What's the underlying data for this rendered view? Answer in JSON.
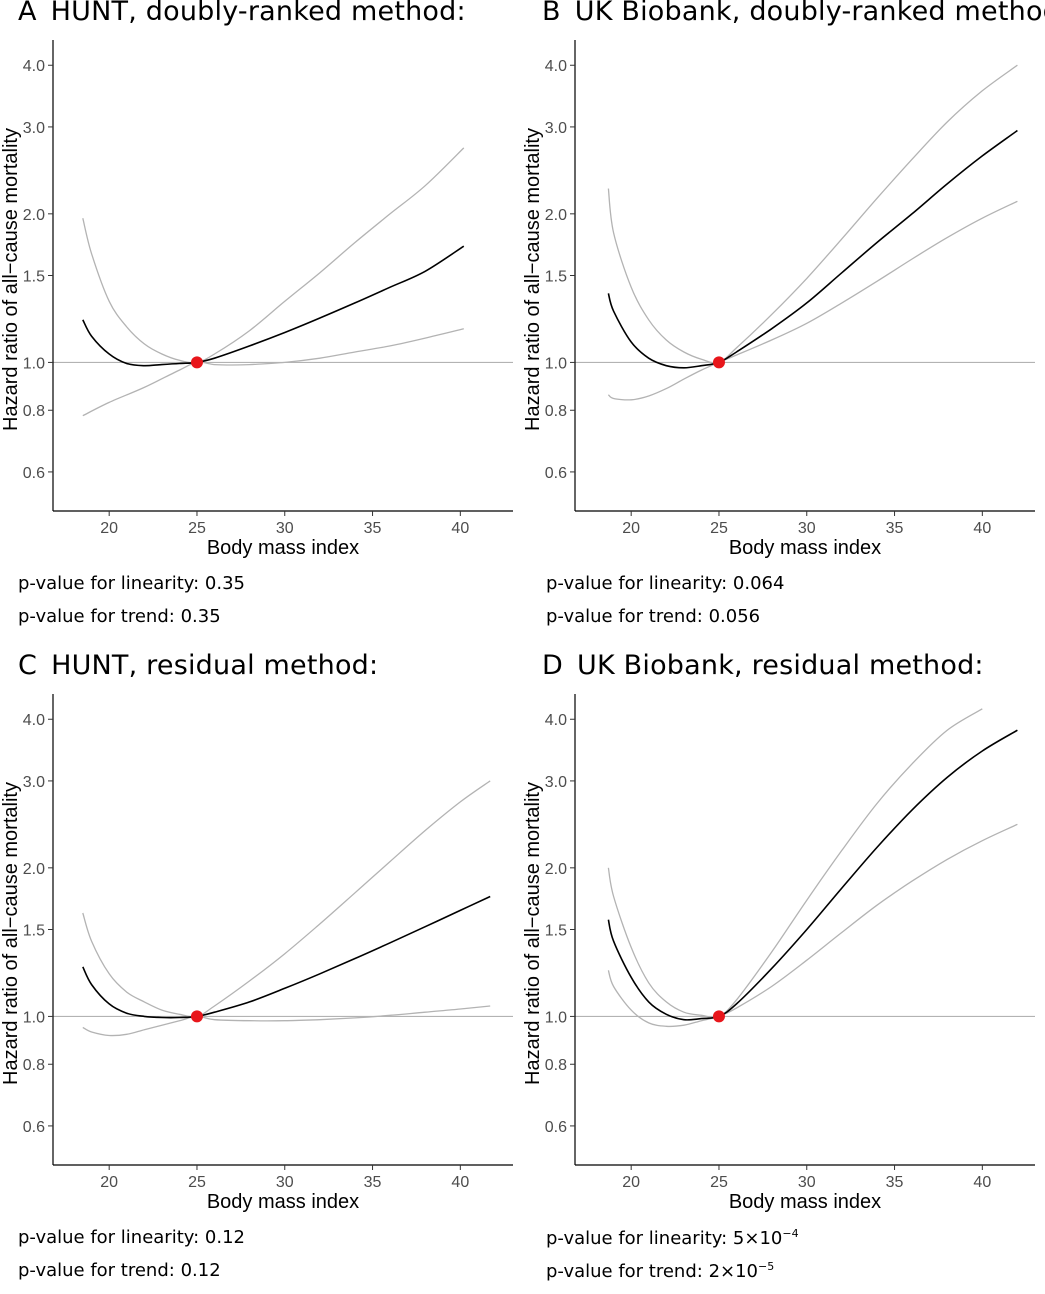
{
  "chart_data": [
    {
      "type": "line",
      "panel_letter": "A",
      "title": "HUNT, doubly-ranked method:",
      "xlabel": "Body mass index",
      "ylabel": "Hazard ratio of all−cause mortality",
      "x_ticks": [
        "20",
        "25",
        "30",
        "35",
        "40"
      ],
      "y_ticks": [
        "0.6",
        "0.8",
        "1.0",
        "1.5",
        "2.0",
        "3.0",
        "4.0"
      ],
      "xlim": [
        16.8,
        43.0
      ],
      "ylim": [
        0.5,
        4.5
      ],
      "y_scale": "log",
      "grid": false,
      "reference_line": 1.0,
      "reference_point": {
        "x": 25,
        "y": 1.0,
        "color": "#e8161b"
      },
      "series": [
        {
          "role": "estimate",
          "color": "#000000",
          "x": [
            18.5,
            19,
            20,
            21,
            22,
            23,
            24,
            25,
            26,
            28,
            30,
            32,
            34,
            36,
            38,
            40.2
          ],
          "values": [
            1.22,
            1.13,
            1.04,
            0.995,
            0.985,
            0.99,
            0.995,
            1.0,
            1.02,
            1.08,
            1.15,
            1.23,
            1.32,
            1.42,
            1.53,
            1.72
          ]
        },
        {
          "role": "ci_upper",
          "color": "#b3b3b3",
          "x": [
            18.5,
            19,
            20,
            21,
            22,
            23,
            24,
            25,
            26,
            28,
            30,
            32,
            34,
            36,
            38,
            40.2
          ],
          "values": [
            1.96,
            1.66,
            1.33,
            1.18,
            1.09,
            1.04,
            1.01,
            1.0,
            1.04,
            1.16,
            1.33,
            1.52,
            1.75,
            2.0,
            2.28,
            2.72
          ]
        },
        {
          "role": "ci_lower",
          "color": "#b3b3b3",
          "x": [
            18.5,
            20,
            22,
            24,
            25,
            26,
            27,
            28,
            30,
            32,
            34,
            36,
            38,
            40.2
          ],
          "values": [
            0.78,
            0.83,
            0.89,
            0.965,
            1.0,
            0.99,
            0.988,
            0.99,
            1.0,
            1.02,
            1.05,
            1.08,
            1.12,
            1.17
          ]
        }
      ],
      "p_values": {
        "linearity_label": "p-value for linearity: ",
        "linearity": "0.35",
        "trend_label": "p-value for trend: ",
        "trend": "0.35"
      }
    },
    {
      "type": "line",
      "panel_letter": "B",
      "title": "UK Biobank, doubly-ranked method:",
      "xlabel": "Body mass index",
      "ylabel": "Hazard ratio of all−cause mortality",
      "x_ticks": [
        "20",
        "25",
        "30",
        "35",
        "40"
      ],
      "y_ticks": [
        "0.6",
        "0.8",
        "1.0",
        "1.5",
        "2.0",
        "3.0",
        "4.0"
      ],
      "xlim": [
        16.8,
        43.0
      ],
      "ylim": [
        0.5,
        4.5
      ],
      "y_scale": "log",
      "grid": false,
      "reference_line": 1.0,
      "reference_point": {
        "x": 25,
        "y": 1.0,
        "color": "#e8161b"
      },
      "series": [
        {
          "role": "estimate",
          "color": "#000000",
          "x": [
            18.7,
            19,
            20,
            21,
            22,
            23,
            24,
            25,
            26,
            28,
            30,
            32,
            34,
            36,
            38,
            40,
            42
          ],
          "values": [
            1.38,
            1.27,
            1.1,
            1.02,
            0.985,
            0.975,
            0.985,
            1.0,
            1.05,
            1.17,
            1.32,
            1.52,
            1.75,
            2.0,
            2.3,
            2.62,
            2.95
          ]
        },
        {
          "role": "ci_upper",
          "color": "#b3b3b3",
          "x": [
            18.7,
            19,
            20,
            21,
            22,
            23,
            24,
            25,
            26,
            28,
            30,
            32,
            34,
            36,
            38,
            40,
            42
          ],
          "values": [
            2.25,
            1.83,
            1.42,
            1.22,
            1.11,
            1.05,
            1.015,
            1.0,
            1.07,
            1.25,
            1.48,
            1.78,
            2.15,
            2.58,
            3.07,
            3.55,
            4.0
          ]
        },
        {
          "role": "ci_lower",
          "color": "#b3b3b3",
          "x": [
            18.7,
            19,
            20,
            21,
            22,
            23,
            24,
            25,
            26,
            28,
            30,
            32,
            34,
            36,
            38,
            40,
            42
          ],
          "values": [
            0.86,
            0.845,
            0.84,
            0.855,
            0.885,
            0.925,
            0.965,
            1.0,
            1.035,
            1.11,
            1.2,
            1.32,
            1.46,
            1.62,
            1.79,
            1.96,
            2.12
          ]
        }
      ],
      "p_values": {
        "linearity_label": "p-value for linearity: ",
        "linearity": "0.064",
        "trend_label": "p-value for trend: ",
        "trend": "0.056"
      }
    },
    {
      "type": "line",
      "panel_letter": "C",
      "title": "HUNT, residual method:",
      "xlabel": "Body mass index",
      "ylabel": "Hazard ratio of all−cause mortality",
      "x_ticks": [
        "20",
        "25",
        "30",
        "35",
        "40"
      ],
      "y_ticks": [
        "0.6",
        "0.8",
        "1.0",
        "1.5",
        "2.0",
        "3.0",
        "4.0"
      ],
      "xlim": [
        16.8,
        43.0
      ],
      "ylim": [
        0.5,
        4.5
      ],
      "y_scale": "log",
      "grid": false,
      "reference_line": 1.0,
      "reference_point": {
        "x": 25,
        "y": 1.0,
        "color": "#e8161b"
      },
      "series": [
        {
          "role": "estimate",
          "color": "#000000",
          "x": [
            18.5,
            19,
            20,
            21,
            22,
            23,
            24,
            25,
            26,
            28,
            30,
            32,
            34,
            36,
            38,
            40,
            41.7
          ],
          "values": [
            1.26,
            1.16,
            1.06,
            1.015,
            1.0,
            0.995,
            0.995,
            1.0,
            1.02,
            1.07,
            1.14,
            1.22,
            1.31,
            1.41,
            1.52,
            1.64,
            1.75
          ]
        },
        {
          "role": "ci_upper",
          "color": "#b3b3b3",
          "x": [
            18.5,
            19,
            20,
            21,
            22,
            23,
            24,
            25,
            26,
            28,
            30,
            32,
            34,
            36,
            38,
            40,
            41.7
          ],
          "values": [
            1.62,
            1.42,
            1.22,
            1.12,
            1.07,
            1.03,
            1.01,
            1.0,
            1.05,
            1.18,
            1.34,
            1.54,
            1.78,
            2.06,
            2.38,
            2.72,
            3.0
          ]
        },
        {
          "role": "ci_lower",
          "color": "#b3b3b3",
          "x": [
            18.5,
            19,
            20,
            21,
            22,
            23,
            24,
            25,
            26,
            28,
            30,
            32,
            34,
            36,
            38,
            40,
            41.7
          ],
          "values": [
            0.95,
            0.93,
            0.915,
            0.92,
            0.94,
            0.96,
            0.98,
            1.0,
            0.985,
            0.98,
            0.98,
            0.985,
            0.993,
            1.005,
            1.02,
            1.035,
            1.05
          ]
        }
      ],
      "p_values": {
        "linearity_label": "p-value for linearity: ",
        "linearity": "0.12",
        "trend_label": "p-value for trend: ",
        "trend": "0.12"
      }
    },
    {
      "type": "line",
      "panel_letter": "D",
      "title": "UK Biobank, residual method:",
      "xlabel": "Body mass index",
      "ylabel": "Hazard ratio of all−cause mortality",
      "x_ticks": [
        "20",
        "25",
        "30",
        "35",
        "40"
      ],
      "y_ticks": [
        "0.6",
        "0.8",
        "1.0",
        "1.5",
        "2.0",
        "3.0",
        "4.0"
      ],
      "xlim": [
        16.8,
        43.0
      ],
      "ylim": [
        0.5,
        4.5
      ],
      "y_scale": "log",
      "grid": false,
      "reference_line": 1.0,
      "reference_point": {
        "x": 25,
        "y": 1.0,
        "color": "#e8161b"
      },
      "series": [
        {
          "role": "estimate",
          "color": "#000000",
          "x": [
            18.7,
            19,
            20,
            21,
            22,
            23,
            24,
            25,
            26,
            28,
            30,
            32,
            34,
            36,
            38,
            40,
            42
          ],
          "values": [
            1.57,
            1.42,
            1.2,
            1.07,
            1.01,
            0.985,
            0.99,
            1.0,
            1.06,
            1.25,
            1.5,
            1.82,
            2.2,
            2.62,
            3.05,
            3.45,
            3.8
          ]
        },
        {
          "role": "ci_upper",
          "color": "#b3b3b3",
          "x": [
            18.7,
            19,
            20,
            21,
            22,
            23,
            24,
            25,
            26,
            28,
            30,
            32,
            34,
            36,
            38,
            40
          ],
          "values": [
            2.0,
            1.75,
            1.38,
            1.17,
            1.07,
            1.02,
            1.005,
            1.0,
            1.08,
            1.35,
            1.72,
            2.17,
            2.7,
            3.25,
            3.8,
            4.2
          ]
        },
        {
          "role": "ci_lower",
          "color": "#b3b3b3",
          "x": [
            18.7,
            19,
            20,
            21,
            22,
            23,
            24,
            25,
            26,
            28,
            30,
            32,
            34,
            36,
            38,
            40,
            42
          ],
          "values": [
            1.24,
            1.15,
            1.03,
            0.97,
            0.955,
            0.96,
            0.98,
            1.0,
            1.04,
            1.15,
            1.3,
            1.48,
            1.68,
            1.88,
            2.08,
            2.27,
            2.45
          ]
        }
      ],
      "p_values": {
        "linearity_label": "p-value for linearity: ",
        "linearity": "5×10",
        "linearity_exp": "−4",
        "trend_label": "p-value for trend: ",
        "trend": "2×10",
        "trend_exp": "−5"
      }
    }
  ]
}
